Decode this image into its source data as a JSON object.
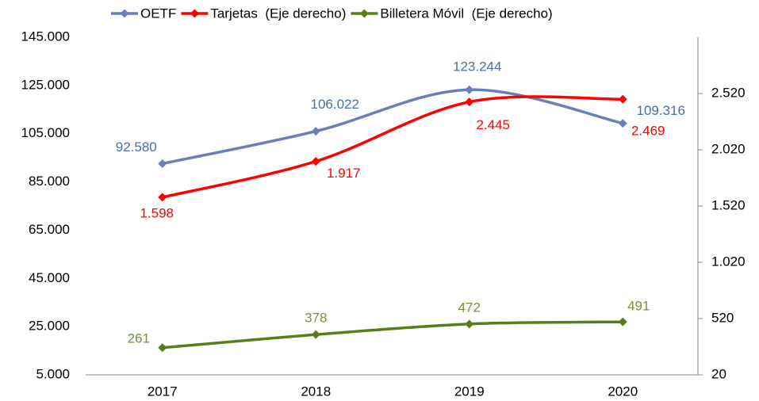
{
  "chart_data": {
    "type": "line",
    "categories": [
      "2017",
      "2018",
      "2019",
      "2020"
    ],
    "series": [
      {
        "name": "OETF",
        "color": "#6a7fba",
        "label_color": "#4a6fa5",
        "values": [
          92580,
          106022,
          123244,
          109316
        ],
        "value_labels": [
          "92.580",
          "106.022",
          "123.244",
          "109.316"
        ]
      },
      {
        "name": "Tarjetas  (Eje derecho)",
        "color": "#ff0000",
        "label_color": "#ff0000",
        "axis": "y2",
        "values": [
          1598,
          1917,
          2445,
          2469
        ],
        "value_labels": [
          "1.598",
          "1.917",
          "2.445",
          "2.469"
        ]
      },
      {
        "name": "Billetera Móvil  (Eje derecho)",
        "color": "#5a7d1c",
        "label_color": "#76923c",
        "axis": "y2",
        "values": [
          261,
          378,
          472,
          491
        ]
      }
    ],
    "ylim": [
      5000,
      145000
    ],
    "yticks": [
      {
        "value": 5000,
        "label": "5.000"
      },
      {
        "value": 25000,
        "label": "25.000"
      },
      {
        "value": 45000,
        "label": "45.000"
      },
      {
        "value": 65000,
        "label": "65.000"
      },
      {
        "value": 85000,
        "label": "85.000"
      },
      {
        "value": 105000,
        "label": "105.000"
      },
      {
        "value": 125000,
        "label": "125.000"
      },
      {
        "value": 145000,
        "label": "145.000"
      }
    ],
    "y2lim": [
      20,
      3020
    ],
    "y2ticks": [
      20,
      520,
      {
        "value": 1020,
        "label": "1.020"
      },
      {
        "value": 1520,
        "label": "1.520"
      },
      {
        "value": 2020,
        "label": "2.020"
      },
      {
        "value": 2520,
        "label": "2.520"
      }
    ],
    "legend": "top"
  }
}
